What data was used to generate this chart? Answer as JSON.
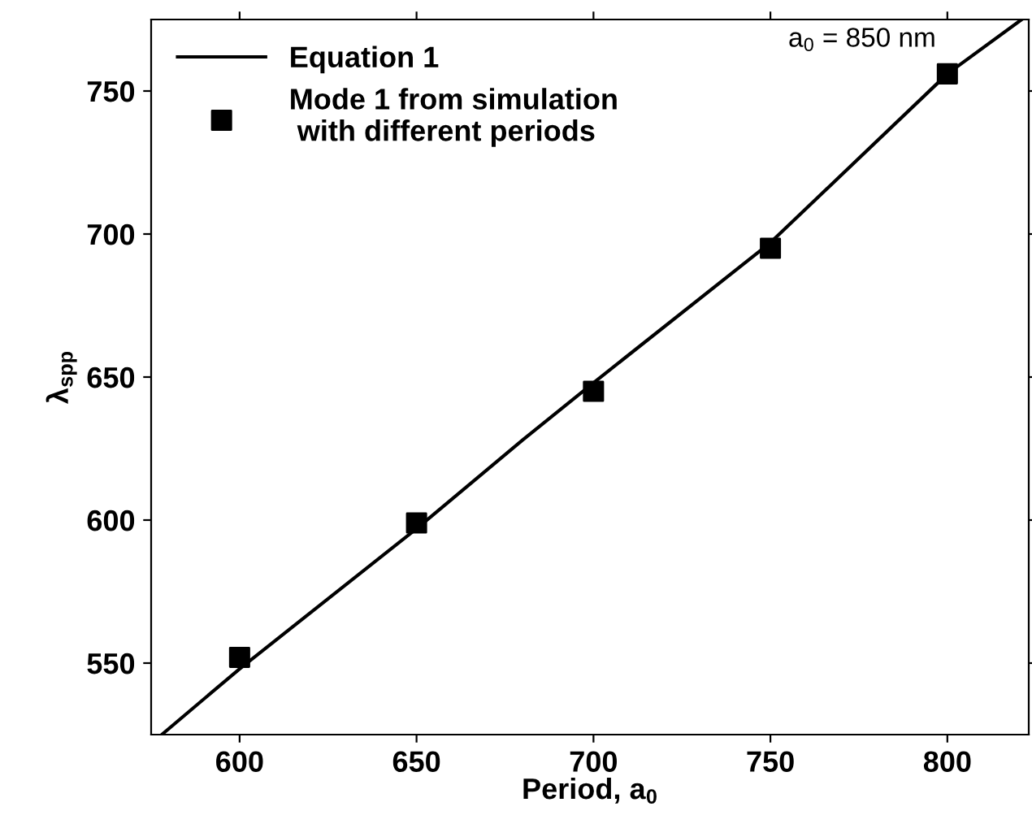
{
  "chart_data": {
    "type": "line",
    "xlabel": "Period, a$_{0}$",
    "ylabel": "λ$_{spp}$",
    "xlim": [
      575,
      823
    ],
    "ylim": [
      525,
      775
    ],
    "xticks": [
      600,
      650,
      700,
      750,
      800
    ],
    "yticks": [
      550,
      600,
      650,
      700,
      750
    ],
    "grid": false,
    "legend": "top left",
    "series": [
      {
        "name": "Equation 1",
        "color": "#000000",
        "line_style": "solid",
        "marker": "none",
        "x": [
          578,
          600,
          650,
          680,
          700,
          750,
          800,
          821
        ],
        "values": [
          525,
          548,
          597,
          628,
          648,
          697,
          756,
          775
        ]
      },
      {
        "name": "Mode 1 from simulation\n with different periods",
        "type": "scatter",
        "color": "#000000",
        "marker": "square",
        "x": [
          600,
          650,
          700,
          750,
          800
        ],
        "values": [
          552,
          599,
          645,
          695,
          756
        ]
      }
    ],
    "annotations": [
      {
        "text": "a$_{0}$ = 850 nm",
        "x": 800,
        "y": 756
      }
    ]
  }
}
